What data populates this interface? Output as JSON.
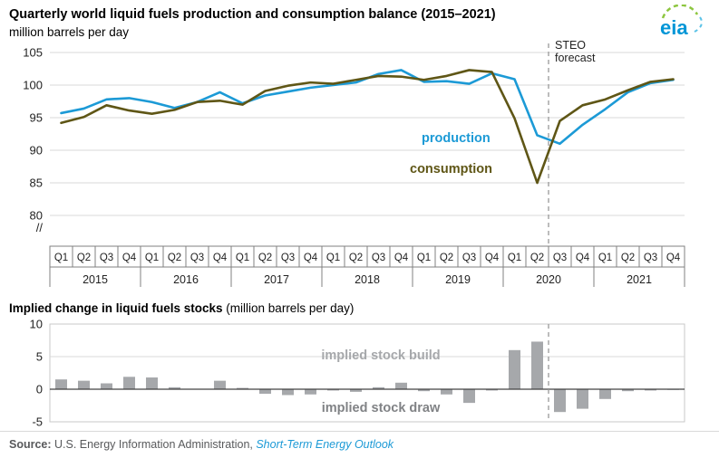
{
  "header": {
    "title": "Quarterly world liquid fuels production and consumption balance (2015–2021)",
    "units": "million barrels per day",
    "logo": "eia"
  },
  "colors": {
    "production": "#1C9AD6",
    "consumption": "#5F5616",
    "bar": "#A6A8AB",
    "forecast": "#999999",
    "grid": "#D9D9D9",
    "zero_line": "#404040",
    "box_border": "#808080",
    "link": "#1C9AD6"
  },
  "chart_data": [
    {
      "type": "line",
      "title": "Quarterly world liquid fuels production and consumption balance (2015–2021)",
      "ylabel": "million barrels per day",
      "ylim": [
        80,
        105
      ],
      "yticks": [
        105,
        100,
        95,
        90,
        85,
        80
      ],
      "axis_break_symbol": "//",
      "quarters": [
        "Q1",
        "Q2",
        "Q3",
        "Q4"
      ],
      "years": [
        "2015",
        "2016",
        "2017",
        "2018",
        "2019",
        "2020",
        "2021"
      ],
      "series": [
        {
          "name": "production",
          "color": "#1C9AD6",
          "values": [
            95.7,
            96.4,
            97.8,
            98.0,
            97.4,
            96.5,
            97.4,
            98.9,
            97.2,
            98.4,
            99.0,
            99.6,
            100.0,
            100.4,
            101.7,
            102.3,
            100.5,
            100.6,
            100.2,
            101.8,
            100.9,
            92.3,
            91.0,
            93.9,
            96.3,
            98.9,
            100.3,
            100.8
          ]
        },
        {
          "name": "consumption",
          "color": "#5F5616",
          "values": [
            94.2,
            95.1,
            96.9,
            96.1,
            95.6,
            96.2,
            97.4,
            97.6,
            97.0,
            99.1,
            99.9,
            100.4,
            100.2,
            100.8,
            101.4,
            101.3,
            100.8,
            101.4,
            102.3,
            102.0,
            94.9,
            85.0,
            94.5,
            96.9,
            97.8,
            99.2,
            100.5,
            100.9
          ]
        }
      ],
      "forecast": {
        "label": [
          "STEO",
          "forecast"
        ],
        "boundary_index": 22
      }
    },
    {
      "type": "bar",
      "title_bold": "Implied change in liquid fuels stocks",
      "title_normal": " (million barrels per day)",
      "ylim": [
        -5,
        10
      ],
      "yticks": [
        10,
        5,
        0,
        -5
      ],
      "values": [
        1.5,
        1.3,
        0.9,
        1.9,
        1.8,
        0.3,
        0.0,
        1.3,
        0.2,
        -0.7,
        -0.9,
        -0.8,
        -0.2,
        -0.4,
        0.3,
        1.0,
        -0.3,
        -0.8,
        -2.1,
        -0.2,
        6.0,
        7.3,
        -3.5,
        -3.0,
        -1.5,
        -0.3,
        -0.2,
        -0.1
      ],
      "annotations": [
        {
          "text": "implied stock build",
          "color": "#A6A8AB"
        },
        {
          "text": "implied stock draw",
          "color": "#808285"
        }
      ]
    }
  ],
  "footer": {
    "source_label": "Source:",
    "source_text": " U.S. Energy Information Administration, ",
    "source_link": "Short-Term Energy Outlook"
  }
}
